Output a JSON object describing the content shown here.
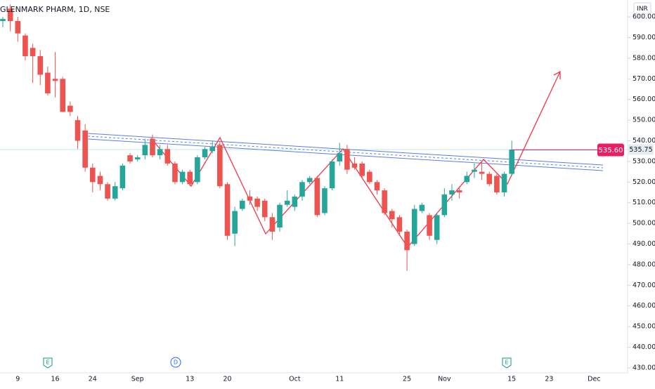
{
  "chart_data": {
    "type": "candlestick",
    "title": "GLENMARK PHARM, 1D, NSE",
    "currency": "INR",
    "categories": [
      null,
      null,
      "9",
      null,
      null,
      null,
      null,
      "16",
      null,
      null,
      null,
      null,
      "24",
      null,
      null,
      null,
      null,
      null,
      "Sep",
      null,
      null,
      null,
      null,
      null,
      null,
      "13",
      null,
      null,
      null,
      null,
      "20",
      null,
      null,
      null,
      null,
      null,
      null,
      null,
      null,
      "Oct",
      null,
      null,
      null,
      null,
      null,
      "11",
      null,
      null,
      null,
      null,
      null,
      null,
      null,
      null,
      "25",
      null,
      null,
      null,
      null,
      "Nov",
      null,
      null,
      null,
      null,
      null,
      null,
      null,
      null,
      "15",
      null,
      null,
      null,
      null,
      "23",
      null,
      null,
      null,
      null,
      null,
      "Dec",
      null,
      null,
      null,
      null
    ],
    "open": [
      598,
      604,
      598,
      591,
      585,
      581,
      573,
      570,
      570,
      557,
      550,
      545,
      527,
      523,
      519,
      512,
      517,
      533,
      531,
      533,
      541,
      533,
      536,
      529,
      520,
      525,
      520,
      532,
      535,
      538,
      519,
      495,
      507,
      513,
      512,
      511,
      503,
      498,
      509,
      508,
      513,
      520,
      522,
      505,
      517,
      530,
      536,
      529,
      529,
      525,
      520,
      516,
      506,
      503,
      496,
      490,
      506,
      504,
      492,
      504,
      514,
      516,
      520,
      525,
      525,
      524,
      523,
      515,
      524,
      null,
      null,
      null,
      null,
      null,
      null,
      null,
      null,
      null,
      null,
      null,
      null,
      null,
      null,
      null
    ],
    "high": [
      600,
      606,
      600,
      592,
      587,
      584,
      576,
      583,
      571,
      559,
      552,
      548,
      529,
      525,
      520,
      520,
      529,
      534,
      533,
      541,
      543,
      538,
      538,
      530,
      526,
      526,
      533,
      537,
      540,
      540,
      520,
      508,
      512,
      516,
      513,
      512,
      505,
      510,
      516,
      514,
      521,
      523,
      523,
      518,
      531,
      539,
      538,
      532,
      530,
      526,
      521,
      517,
      507,
      504,
      497,
      509,
      510,
      505,
      505,
      517,
      519,
      518,
      525,
      529,
      530,
      525,
      524,
      525,
      540,
      null,
      null,
      null,
      null,
      null,
      null,
      null,
      null,
      null,
      null,
      null,
      null,
      null,
      null,
      null
    ],
    "low": [
      595,
      593,
      588,
      579,
      568,
      567,
      562,
      561,
      554,
      552,
      536,
      525,
      515,
      516,
      511,
      511,
      516,
      529,
      530,
      531,
      532,
      531,
      528,
      519,
      519,
      518,
      519,
      531,
      534,
      517,
      492,
      489,
      506,
      509,
      506,
      501,
      492,
      496,
      508,
      506,
      511,
      519,
      503,
      504,
      516,
      528,
      524,
      526,
      522,
      519,
      514,
      504,
      498,
      494,
      477,
      489,
      505,
      492,
      490,
      503,
      511,
      512,
      519,
      522,
      521,
      518,
      514,
      513,
      523,
      null,
      null,
      null,
      null,
      null,
      null,
      null,
      null,
      null,
      null,
      null,
      null,
      null,
      null,
      null
    ],
    "close": [
      599,
      598,
      592,
      581,
      581,
      572,
      563,
      569,
      554,
      554,
      540,
      527,
      520,
      519,
      512,
      518,
      528,
      530,
      532,
      538,
      533,
      536,
      529,
      520,
      525,
      519,
      532,
      536,
      537,
      518,
      494,
      506,
      511,
      511,
      508,
      503,
      496,
      509,
      511,
      513,
      520,
      522,
      504,
      517,
      530,
      534,
      526,
      527,
      523,
      520,
      516,
      505,
      502,
      496,
      487,
      507,
      509,
      494,
      504,
      514,
      516,
      515,
      523,
      526,
      524,
      519,
      515,
      524,
      535.75,
      null,
      null,
      null,
      null,
      null,
      null,
      null,
      null,
      null,
      null,
      null,
      null,
      null,
      null,
      null
    ],
    "up_color": "#26a69a",
    "down_color": "#ef5350",
    "ylim": [
      427.6,
      608.2
    ],
    "yticks": [
      {
        "value": 430,
        "label": "430.00"
      },
      {
        "value": 440,
        "label": "440.00"
      },
      {
        "value": 450,
        "label": "450.00"
      },
      {
        "value": 460,
        "label": "460.00"
      },
      {
        "value": 470,
        "label": "470.00"
      },
      {
        "value": 480,
        "label": "480.00"
      },
      {
        "value": 490,
        "label": "490.00"
      },
      {
        "value": 500,
        "label": "500.00"
      },
      {
        "value": 510,
        "label": "510.00"
      },
      {
        "value": 520,
        "label": "520.00"
      },
      {
        "value": 530,
        "label": "530.00"
      },
      {
        "value": 540,
        "label": "540.00"
      },
      {
        "value": 550,
        "label": "550.00"
      },
      {
        "value": 560,
        "label": "560.00"
      },
      {
        "value": 570,
        "label": "570.00"
      },
      {
        "value": 580,
        "label": "580.00"
      },
      {
        "value": 590,
        "label": "590.00"
      },
      {
        "value": 600,
        "label": "600.00"
      }
    ],
    "last_price": {
      "value": 535.75,
      "label": "535.75"
    },
    "alert_price": {
      "value": 535.6,
      "label": "535.60",
      "color": "#e91e63"
    },
    "events": [
      "E",
      "D",
      "E"
    ]
  }
}
